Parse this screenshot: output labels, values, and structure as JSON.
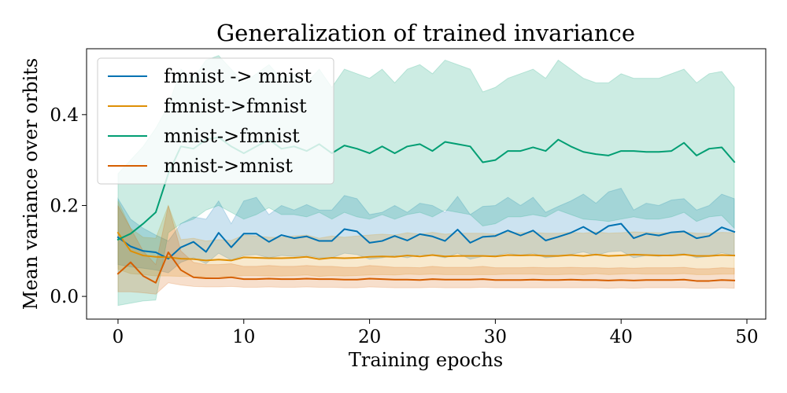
{
  "chart_data": {
    "type": "line",
    "title": "Generalization of trained invariance",
    "xlabel": "Training epochs",
    "ylabel": "Mean variance over orbits",
    "xlim": [
      -2.5,
      51.5
    ],
    "ylim": [
      -0.05,
      0.545
    ],
    "xticks": [
      0,
      10,
      20,
      30,
      40,
      50
    ],
    "yticks": [
      0.0,
      0.2,
      0.4
    ],
    "ytick_labels": [
      "0.0",
      "0.2",
      "0.4"
    ],
    "grid": false,
    "legend": {
      "placement": "top-left"
    },
    "x": [
      0,
      1,
      2,
      3,
      4,
      5,
      6,
      7,
      8,
      9,
      10,
      11,
      12,
      13,
      14,
      15,
      16,
      17,
      18,
      19,
      20,
      21,
      22,
      23,
      24,
      25,
      26,
      27,
      28,
      29,
      30,
      31,
      32,
      33,
      34,
      35,
      36,
      37,
      38,
      39,
      40,
      41,
      42,
      43,
      44,
      45,
      46,
      47,
      48,
      49
    ],
    "series": [
      {
        "name": "fmnist -> mnist",
        "color": "#0072b2",
        "values": [
          0.13,
          0.11,
          0.1,
          0.097,
          0.083,
          0.108,
          0.12,
          0.098,
          0.14,
          0.108,
          0.138,
          0.138,
          0.12,
          0.135,
          0.128,
          0.132,
          0.122,
          0.122,
          0.148,
          0.143,
          0.118,
          0.122,
          0.133,
          0.123,
          0.137,
          0.132,
          0.122,
          0.147,
          0.118,
          0.131,
          0.133,
          0.145,
          0.134,
          0.145,
          0.123,
          0.131,
          0.14,
          0.153,
          0.137,
          0.155,
          0.16,
          0.128,
          0.138,
          0.134,
          0.141,
          0.143,
          0.128,
          0.133,
          0.152,
          0.142
        ],
        "lower": [
          0.07,
          0.065,
          0.062,
          0.058,
          0.052,
          0.075,
          0.085,
          0.072,
          0.095,
          0.08,
          0.09,
          0.092,
          0.085,
          0.09,
          0.088,
          0.09,
          0.085,
          0.085,
          0.095,
          0.092,
          0.082,
          0.085,
          0.09,
          0.085,
          0.092,
          0.09,
          0.085,
          0.095,
          0.082,
          0.088,
          0.09,
          0.095,
          0.09,
          0.095,
          0.085,
          0.088,
          0.092,
          0.098,
          0.09,
          0.098,
          0.1,
          0.085,
          0.09,
          0.088,
          0.092,
          0.094,
          0.085,
          0.088,
          0.096,
          0.09
        ],
        "upper": [
          0.215,
          0.17,
          0.15,
          0.135,
          0.122,
          0.16,
          0.175,
          0.17,
          0.21,
          0.16,
          0.21,
          0.218,
          0.18,
          0.2,
          0.19,
          0.202,
          0.19,
          0.19,
          0.222,
          0.215,
          0.18,
          0.185,
          0.2,
          0.185,
          0.205,
          0.2,
          0.185,
          0.22,
          0.18,
          0.198,
          0.2,
          0.218,
          0.2,
          0.218,
          0.185,
          0.198,
          0.21,
          0.225,
          0.205,
          0.23,
          0.238,
          0.19,
          0.205,
          0.2,
          0.212,
          0.215,
          0.19,
          0.2,
          0.225,
          0.215
        ]
      },
      {
        "name": "fmnist->fmnist",
        "color": "#de8f05",
        "values": [
          0.14,
          0.1,
          0.09,
          0.087,
          0.086,
          0.083,
          0.082,
          0.079,
          0.081,
          0.079,
          0.086,
          0.085,
          0.084,
          0.084,
          0.085,
          0.087,
          0.082,
          0.085,
          0.084,
          0.085,
          0.087,
          0.088,
          0.087,
          0.09,
          0.088,
          0.091,
          0.088,
          0.089,
          0.089,
          0.089,
          0.088,
          0.091,
          0.09,
          0.091,
          0.089,
          0.089,
          0.091,
          0.089,
          0.092,
          0.089,
          0.09,
          0.092,
          0.091,
          0.09,
          0.09,
          0.092,
          0.089,
          0.089,
          0.091,
          0.09
        ],
        "lower": [
          0.06,
          0.05,
          0.048,
          0.045,
          0.045,
          0.044,
          0.044,
          0.043,
          0.044,
          0.043,
          0.046,
          0.046,
          0.045,
          0.045,
          0.046,
          0.047,
          0.044,
          0.046,
          0.045,
          0.046,
          0.047,
          0.048,
          0.047,
          0.049,
          0.048,
          0.049,
          0.048,
          0.048,
          0.048,
          0.048,
          0.048,
          0.049,
          0.049,
          0.049,
          0.048,
          0.048,
          0.049,
          0.048,
          0.05,
          0.048,
          0.049,
          0.05,
          0.049,
          0.049,
          0.049,
          0.05,
          0.048,
          0.048,
          0.049,
          0.049
        ],
        "upper": [
          0.21,
          0.15,
          0.13,
          0.128,
          0.2,
          0.125,
          0.128,
          0.122,
          0.125,
          0.123,
          0.135,
          0.133,
          0.13,
          0.13,
          0.133,
          0.135,
          0.128,
          0.133,
          0.13,
          0.133,
          0.135,
          0.137,
          0.135,
          0.14,
          0.137,
          0.141,
          0.137,
          0.139,
          0.139,
          0.139,
          0.137,
          0.141,
          0.14,
          0.141,
          0.139,
          0.139,
          0.141,
          0.139,
          0.142,
          0.139,
          0.14,
          0.142,
          0.141,
          0.14,
          0.14,
          0.142,
          0.139,
          0.139,
          0.141,
          0.14
        ]
      },
      {
        "name": "mnist->fmnist",
        "color": "#029e73",
        "values": [
          0.125,
          0.138,
          0.16,
          0.185,
          0.27,
          0.33,
          0.325,
          0.345,
          0.35,
          0.33,
          0.315,
          0.33,
          0.345,
          0.325,
          0.33,
          0.32,
          0.335,
          0.315,
          0.332,
          0.325,
          0.315,
          0.33,
          0.315,
          0.33,
          0.335,
          0.32,
          0.34,
          0.335,
          0.33,
          0.295,
          0.3,
          0.32,
          0.32,
          0.328,
          0.32,
          0.345,
          0.33,
          0.318,
          0.313,
          0.31,
          0.32,
          0.32,
          0.318,
          0.318,
          0.32,
          0.338,
          0.31,
          0.325,
          0.328,
          0.296
        ],
        "lower": [
          -0.02,
          -0.015,
          -0.01,
          -0.008,
          0.14,
          0.16,
          0.17,
          0.19,
          0.2,
          0.185,
          0.17,
          0.18,
          0.195,
          0.18,
          0.18,
          0.175,
          0.185,
          0.17,
          0.185,
          0.175,
          0.17,
          0.18,
          0.17,
          0.18,
          0.185,
          0.175,
          0.19,
          0.185,
          0.18,
          0.155,
          0.16,
          0.175,
          0.175,
          0.18,
          0.175,
          0.19,
          0.18,
          0.17,
          0.168,
          0.165,
          0.17,
          0.175,
          0.17,
          0.17,
          0.175,
          0.185,
          0.165,
          0.175,
          0.178,
          0.15
        ],
        "upper": [
          0.27,
          0.3,
          0.33,
          0.37,
          0.42,
          0.5,
          0.48,
          0.52,
          0.53,
          0.5,
          0.47,
          0.49,
          0.51,
          0.48,
          0.49,
          0.47,
          0.5,
          0.46,
          0.5,
          0.49,
          0.48,
          0.5,
          0.47,
          0.5,
          0.51,
          0.49,
          0.52,
          0.51,
          0.5,
          0.45,
          0.46,
          0.48,
          0.49,
          0.5,
          0.48,
          0.52,
          0.5,
          0.48,
          0.47,
          0.47,
          0.49,
          0.48,
          0.48,
          0.48,
          0.49,
          0.5,
          0.47,
          0.49,
          0.495,
          0.46
        ]
      },
      {
        "name": "mnist->mnist",
        "color": "#d55e00",
        "values": [
          0.05,
          0.075,
          0.045,
          0.03,
          0.097,
          0.058,
          0.042,
          0.04,
          0.04,
          0.042,
          0.038,
          0.038,
          0.039,
          0.038,
          0.038,
          0.039,
          0.038,
          0.038,
          0.037,
          0.037,
          0.039,
          0.038,
          0.037,
          0.037,
          0.036,
          0.038,
          0.037,
          0.037,
          0.037,
          0.038,
          0.036,
          0.036,
          0.036,
          0.037,
          0.036,
          0.036,
          0.037,
          0.036,
          0.036,
          0.035,
          0.036,
          0.035,
          0.036,
          0.036,
          0.036,
          0.037,
          0.034,
          0.034,
          0.036,
          0.035
        ],
        "lower": [
          0.01,
          0.01,
          0.008,
          0.005,
          0.03,
          0.025,
          0.022,
          0.021,
          0.021,
          0.022,
          0.02,
          0.02,
          0.021,
          0.02,
          0.02,
          0.021,
          0.02,
          0.02,
          0.019,
          0.019,
          0.021,
          0.02,
          0.019,
          0.019,
          0.019,
          0.02,
          0.019,
          0.019,
          0.019,
          0.02,
          0.019,
          0.019,
          0.019,
          0.019,
          0.019,
          0.019,
          0.019,
          0.019,
          0.019,
          0.018,
          0.019,
          0.018,
          0.019,
          0.019,
          0.019,
          0.019,
          0.018,
          0.018,
          0.019,
          0.018
        ],
        "upper": [
          0.2,
          0.15,
          0.1,
          0.07,
          0.2,
          0.1,
          0.075,
          0.07,
          0.07,
          0.072,
          0.066,
          0.066,
          0.068,
          0.066,
          0.066,
          0.068,
          0.066,
          0.066,
          0.064,
          0.064,
          0.068,
          0.066,
          0.064,
          0.064,
          0.063,
          0.066,
          0.064,
          0.064,
          0.064,
          0.066,
          0.063,
          0.063,
          0.063,
          0.064,
          0.063,
          0.063,
          0.064,
          0.063,
          0.063,
          0.062,
          0.063,
          0.062,
          0.063,
          0.063,
          0.063,
          0.064,
          0.061,
          0.061,
          0.063,
          0.062
        ]
      }
    ]
  }
}
